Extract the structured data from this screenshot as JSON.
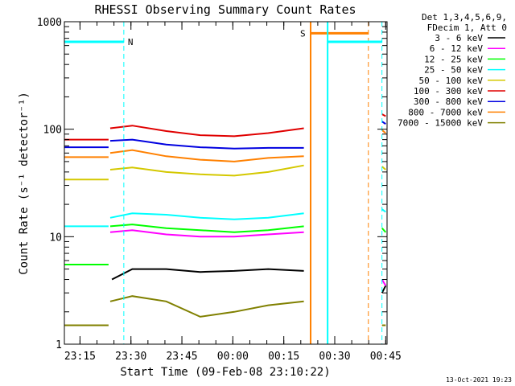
{
  "chart_data": {
    "type": "line",
    "title": "RHESSI Observing Summary Count Rates",
    "xlabel": "Start Time (09-Feb-08 23:10:22)",
    "ylabel": "Count Rate (s⁻¹ detector⁻¹)",
    "yscale": "log",
    "ylim": [
      1,
      1000
    ],
    "xlim_minutes": [
      0,
      95
    ],
    "x_ticks": [
      {
        "label": "23:15",
        "minutes": 4.6
      },
      {
        "label": "23:30",
        "minutes": 19.6
      },
      {
        "label": "23:45",
        "minutes": 34.6
      },
      {
        "label": "00:00",
        "minutes": 49.6
      },
      {
        "label": "00:15",
        "minutes": 64.6
      },
      {
        "label": "00:30",
        "minutes": 79.6
      },
      {
        "label": "00:45",
        "minutes": 94.6
      }
    ],
    "y_ticks": [
      {
        "label": "1",
        "value": 1
      },
      {
        "label": "10",
        "value": 10
      },
      {
        "label": "100",
        "value": 100
      },
      {
        "label": "1000",
        "value": 1000
      }
    ],
    "legend_header": [
      "Det 1,3,4,5,6,9,",
      "FDecim 1, Att 0"
    ],
    "legend_placement": "right",
    "series": [
      {
        "name": "3 - 6 keV",
        "color": "#000000",
        "segments": [
          {
            "x": [
              14,
              20,
              30,
              40,
              50,
              60,
              70.5
            ],
            "y": [
              4,
              5,
              5,
              4.7,
              4.8,
              5,
              4.8
            ]
          },
          {
            "x": [
              93.5,
              94.6
            ],
            "y": [
              3,
              3.5
            ]
          }
        ]
      },
      {
        "name": "6 - 12 keV",
        "color": "#ff00ff",
        "segments": [
          {
            "x": [
              13.5,
              20,
              30,
              40,
              50,
              60,
              70.5
            ],
            "y": [
              11,
              11.5,
              10.5,
              10,
              10,
              10.5,
              11
            ]
          },
          {
            "x": [
              93.5,
              94.6
            ],
            "y": [
              4,
              3.5
            ]
          }
        ]
      },
      {
        "name": "12 - 25 keV",
        "color": "#00ff00",
        "segments": [
          {
            "x": [
              0,
              13
            ],
            "y": [
              5.5,
              5.5
            ]
          },
          {
            "x": [
              13.5,
              20,
              30,
              40,
              50,
              60,
              70.5
            ],
            "y": [
              12.5,
              13,
              12,
              11.5,
              11,
              11.5,
              12.5
            ]
          },
          {
            "x": [
              93.5,
              94.6
            ],
            "y": [
              12,
              11
            ]
          }
        ]
      },
      {
        "name": "25 - 50 keV",
        "color": "#00ffff",
        "segments": [
          {
            "x": [
              0,
              13
            ],
            "y": [
              12.5,
              12.5
            ]
          },
          {
            "x": [
              13.5,
              20,
              30,
              40,
              50,
              60,
              70.5
            ],
            "y": [
              15,
              16.5,
              16,
              15,
              14.5,
              15,
              16.5
            ]
          },
          {
            "x": [
              93.5,
              94.6
            ],
            "y": [
              18,
              17
            ]
          }
        ]
      },
      {
        "name": "50 - 100 keV",
        "color": "#d4c800",
        "segments": [
          {
            "x": [
              0,
              13
            ],
            "y": [
              34,
              34
            ]
          },
          {
            "x": [
              13.5,
              20,
              30,
              40,
              50,
              60,
              70.5
            ],
            "y": [
              42,
              44,
              40,
              38,
              37,
              40,
              46
            ]
          },
          {
            "x": [
              93.5,
              94.6
            ],
            "y": [
              45,
              42
            ]
          }
        ]
      },
      {
        "name": "100 - 300 keV",
        "color": "#e00000",
        "segments": [
          {
            "x": [
              0,
              13
            ],
            "y": [
              80,
              80
            ]
          },
          {
            "x": [
              13.5,
              20,
              30,
              40,
              50,
              60,
              70.5
            ],
            "y": [
              102,
              108,
              96,
              88,
              86,
              92,
              102
            ]
          },
          {
            "x": [
              93.5,
              94.6
            ],
            "y": [
              138,
              132
            ]
          }
        ]
      },
      {
        "name": "300 - 800 keV",
        "color": "#0000e0",
        "segments": [
          {
            "x": [
              0,
              13
            ],
            "y": [
              68,
              68
            ]
          },
          {
            "x": [
              13.5,
              20,
              30,
              40,
              50,
              60,
              70.5
            ],
            "y": [
              78,
              80,
              72,
              68,
              66,
              67,
              67
            ]
          },
          {
            "x": [
              93.5,
              94.6
            ],
            "y": [
              118,
              112
            ]
          }
        ]
      },
      {
        "name": "800 - 7000 keV",
        "color": "#ff8000",
        "segments": [
          {
            "x": [
              0,
              13
            ],
            "y": [
              55,
              55
            ]
          },
          {
            "x": [
              13.5,
              20,
              30,
              40,
              50,
              60,
              70.5
            ],
            "y": [
              60,
              64,
              56,
              52,
              50,
              54,
              56
            ]
          },
          {
            "x": [
              93.5,
              94.6
            ],
            "y": [
              98,
              92
            ]
          }
        ]
      },
      {
        "name": "7000 - 15000 keV",
        "color": "#808000",
        "segments": [
          {
            "x": [
              0,
              13
            ],
            "y": [
              1.5,
              1.5
            ]
          },
          {
            "x": [
              13.5,
              20,
              30,
              40,
              50,
              60,
              70.5
            ],
            "y": [
              2.5,
              2.8,
              2.5,
              1.8,
              2,
              2.3,
              2.5
            ]
          },
          {
            "x": [
              93.5,
              94.6
            ],
            "y": [
              1.5,
              1.5
            ]
          }
        ]
      }
    ],
    "annotations": [
      {
        "label": "N",
        "kind": "night",
        "color": "#00ffff",
        "x_start": 0,
        "x_end": 17.5,
        "x_line": 17.5,
        "level": 650
      },
      {
        "label": "S",
        "kind": "saa",
        "color": "#ff8000",
        "x_start": 72.5,
        "x_end": 89.5,
        "x_line": 89.5,
        "level": 780
      },
      {
        "label": "",
        "kind": "night",
        "color": "#00ffff",
        "x_start": 77.5,
        "x_end": 93.5,
        "x_line": 93.5,
        "level": 650
      }
    ],
    "grid": false
  },
  "footer": {
    "timestamp": "13-Oct-2021 19:23"
  }
}
